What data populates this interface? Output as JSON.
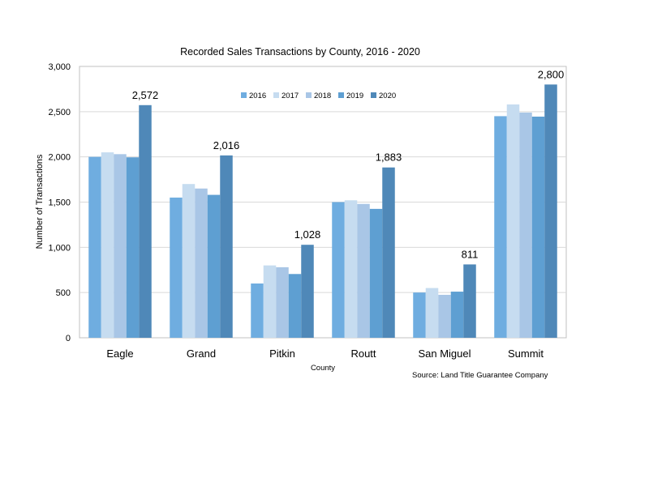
{
  "chart_data": {
    "type": "bar",
    "title": "Recorded Sales Transactions by County, 2016 - 2020",
    "xlabel": "County",
    "ylabel": "Number of Transactions",
    "source": "Source: Land Title Guarantee Company",
    "ylim": [
      0,
      3000
    ],
    "yticks": [
      0,
      500,
      1000,
      1500,
      2000,
      2500,
      3000
    ],
    "ytick_labels": [
      "0",
      "500",
      "1,000",
      "1,500",
      "2,000",
      "2,500",
      "3,000"
    ],
    "grid": true,
    "legend_position": "top-center",
    "categories": [
      "Eagle",
      "Grand",
      "Pitkin",
      "Routt",
      "San Miguel",
      "Summit"
    ],
    "series": [
      {
        "name": "2016",
        "color": "#6fade0",
        "values": [
          2000,
          1550,
          600,
          1500,
          500,
          2450
        ]
      },
      {
        "name": "2017",
        "color": "#c6dcf0",
        "values": [
          2050,
          1700,
          800,
          1520,
          550,
          2580
        ]
      },
      {
        "name": "2018",
        "color": "#a9c6e6",
        "values": [
          2030,
          1650,
          780,
          1480,
          475,
          2490
        ]
      },
      {
        "name": "2019",
        "color": "#5e9fd2",
        "values": [
          1995,
          1580,
          705,
          1425,
          510,
          2445
        ]
      },
      {
        "name": "2020",
        "color": "#4f88b8",
        "values": [
          2572,
          2016,
          1028,
          1883,
          811,
          2800
        ]
      }
    ],
    "data_labels": {
      "series": "2020",
      "labels": [
        "2,572",
        "2,016",
        "1,028",
        "1,883",
        "811",
        "2,800"
      ]
    }
  }
}
